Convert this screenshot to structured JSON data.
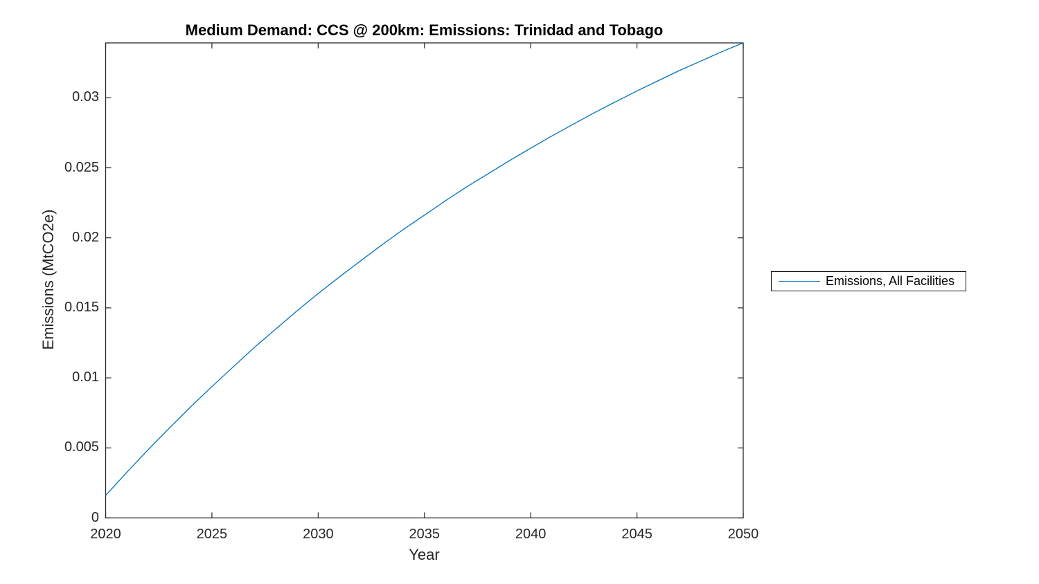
{
  "figure": {
    "background_color": "#ffffff",
    "axis_color": "#262626",
    "accent_color": "#0072BD"
  },
  "chart_data": {
    "type": "line",
    "title": "Medium Demand: CCS @ 200km: Emissions: Trinidad and Tobago",
    "xlabel": "Year",
    "ylabel": "Emissions (MtCO2e)",
    "grid": false,
    "legend_position": "right-outside-center",
    "xlim": [
      2020,
      2050
    ],
    "ylim": [
      0,
      0.03392
    ],
    "xticks": [
      2020,
      2025,
      2030,
      2035,
      2040,
      2045,
      2050
    ],
    "xtick_labels": [
      "2020",
      "2025",
      "2030",
      "2035",
      "2040",
      "2045",
      "2050"
    ],
    "yticks": [
      0,
      0.005,
      0.01,
      0.015,
      0.02,
      0.025,
      0.03
    ],
    "ytick_labels": [
      "0",
      "0.005",
      "0.01",
      "0.015",
      "0.02",
      "0.025",
      "0.03"
    ],
    "x": [
      2020,
      2021,
      2022,
      2023,
      2024,
      2025,
      2026,
      2027,
      2028,
      2029,
      2030,
      2031,
      2032,
      2033,
      2034,
      2035,
      2036,
      2037,
      2038,
      2039,
      2040,
      2041,
      2042,
      2043,
      2044,
      2045,
      2046,
      2047,
      2048,
      2049,
      2050
    ],
    "series": [
      {
        "name": "Emissions, All Facilities",
        "color": "#0072BD",
        "values": [
          0.0016,
          0.00326,
          0.00487,
          0.00642,
          0.00793,
          0.00938,
          0.01078,
          0.01218,
          0.01348,
          0.01478,
          0.01602,
          0.01721,
          0.01836,
          0.0195,
          0.02059,
          0.02162,
          0.02266,
          0.02365,
          0.02458,
          0.02551,
          0.0264,
          0.02728,
          0.02811,
          0.02894,
          0.02972,
          0.03049,
          0.03122,
          0.03195,
          0.03262,
          0.0333,
          0.03392
        ]
      }
    ]
  }
}
